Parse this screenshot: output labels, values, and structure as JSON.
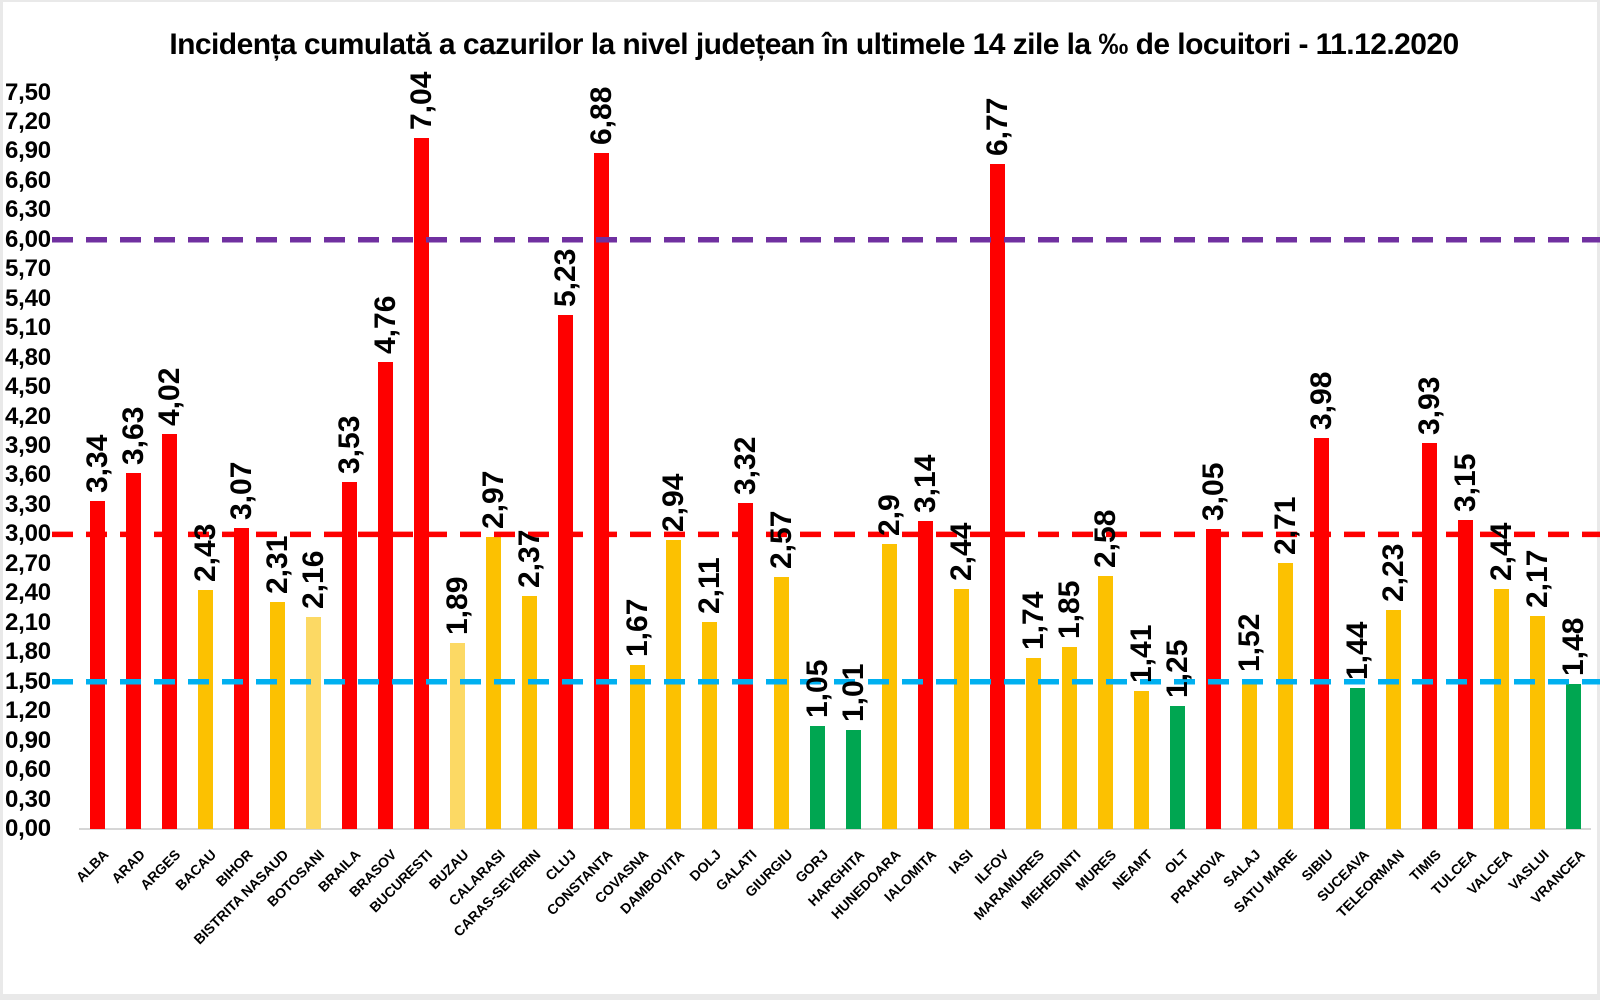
{
  "chart_data": {
    "type": "bar",
    "title": "Incidența cumulată a cazurilor la nivel județean în ultimele 14 zile la ‰ de locuitori - 11.12.2020",
    "categories": [
      "ALBA",
      "ARAD",
      "ARGES",
      "BACAU",
      "BIHOR",
      "BISTRITA NASAUD",
      "BOTOSANI",
      "BRAILA",
      "BRASOV",
      "BUCURESTI",
      "BUZAU",
      "CALARASI",
      "CARAS-SEVERIN",
      "CLUJ",
      "CONSTANTA",
      "COVASNA",
      "DAMBOVITA",
      "DOLJ",
      "GALATI",
      "GIURGIU",
      "GORJ",
      "HARGHITA",
      "HUNEDOARA",
      "IALOMITA",
      "IASI",
      "ILFOV",
      "MARAMURES",
      "MEHEDINTI",
      "MURES",
      "NEAMT",
      "OLT",
      "PRAHOVA",
      "SALAJ",
      "SATU MARE",
      "SIBIU",
      "SUCEAVA",
      "TELEORMAN",
      "TIMIS",
      "TULCEA",
      "VALCEA",
      "VASLUI",
      "VRANCEA"
    ],
    "values": [
      3.34,
      3.63,
      4.02,
      2.43,
      3.07,
      2.31,
      2.16,
      3.53,
      4.76,
      7.04,
      1.89,
      2.97,
      2.37,
      5.23,
      6.88,
      1.67,
      2.94,
      2.11,
      3.32,
      2.57,
      1.05,
      1.01,
      2.9,
      3.14,
      2.44,
      6.77,
      1.74,
      1.85,
      2.58,
      1.41,
      1.25,
      3.05,
      1.52,
      2.71,
      3.98,
      1.44,
      2.23,
      3.93,
      3.15,
      2.44,
      2.17,
      1.48
    ],
    "value_labels": [
      "3,34",
      "3,63",
      "4,02",
      "2,43",
      "3,07",
      "2,31",
      "2,16",
      "3,53",
      "4,76",
      "7,04",
      "1,89",
      "2,97",
      "2,37",
      "5,23",
      "6,88",
      "1,67",
      "2,94",
      "2,11",
      "3,32",
      "2,57",
      "1,05",
      "1,01",
      "2,9",
      "3,14",
      "2,44",
      "6,77",
      "1,74",
      "1,85",
      "2,58",
      "1,41",
      "1,25",
      "3,05",
      "1,52",
      "2,71",
      "3,98",
      "1,44",
      "2,23",
      "3,93",
      "3,15",
      "2,44",
      "2,17",
      "1,48"
    ],
    "bar_color_keys": [
      "red",
      "red",
      "red",
      "gold",
      "red",
      "gold",
      "light_gold",
      "red",
      "red",
      "red",
      "light_gold",
      "gold",
      "gold",
      "red",
      "red",
      "gold",
      "gold",
      "gold",
      "red",
      "gold",
      "green",
      "green",
      "gold",
      "red",
      "gold",
      "red",
      "gold",
      "gold",
      "gold",
      "gold",
      "green",
      "red",
      "gold",
      "gold",
      "red",
      "green",
      "gold",
      "red",
      "red",
      "gold",
      "gold",
      "green"
    ],
    "palette": {
      "red": "#fe0000",
      "gold": "#fcc101",
      "light_gold": "#fcd964",
      "green": "#00a651"
    },
    "xlabel": "",
    "ylabel": "",
    "ylim": [
      0,
      7.5
    ],
    "ytick_step": 0.3,
    "ytick_labels": [
      "0,00",
      "0,30",
      "0,60",
      "0,90",
      "1,20",
      "1,50",
      "1,80",
      "2,10",
      "2,40",
      "2,70",
      "3,00",
      "3,30",
      "3,60",
      "3,90",
      "4,20",
      "4,50",
      "4,80",
      "5,10",
      "5,40",
      "5,70",
      "6,00",
      "6,30",
      "6,60",
      "6,90",
      "7,20",
      "7,50"
    ],
    "grid": false,
    "legend": false,
    "threshold_lines": [
      {
        "value": 6.0,
        "color": "#7030a0",
        "style": "dashed"
      },
      {
        "value": 3.0,
        "color": "#fe0000",
        "style": "dashed"
      },
      {
        "value": 1.5,
        "color": "#00b0f0",
        "style": "dashed"
      }
    ],
    "decimal_separator": ","
  }
}
